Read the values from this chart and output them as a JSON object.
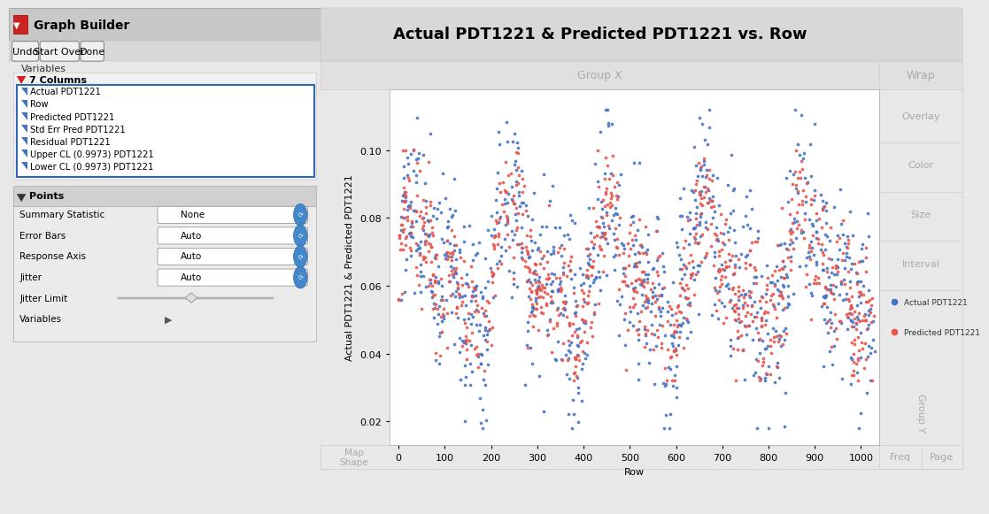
{
  "title": "Actual PDT1221 & Predicted PDT1221 vs. Row",
  "xlabel": "Row",
  "ylabel": "Actual PDT1221 & Predicted PDT1221",
  "group_x_label": "Group X",
  "group_y_label": "Group Y",
  "wrap_label": "Wrap",
  "freq_label": "Freq",
  "page_label": "Page",
  "map_shape_label": "Map\nShape",
  "overlay_label": "Overlay",
  "color_label": "Color",
  "size_label": "Size",
  "interval_label": "Interval",
  "legend_actual": "Actual PDT1221",
  "legend_predicted": "Predicted PDT1221",
  "actual_color": "#4472C4",
  "predicted_color": "#E8534A",
  "xlim": [
    -20,
    1040
  ],
  "ylim": [
    0.013,
    0.118
  ],
  "xticks": [
    0,
    100,
    200,
    300,
    400,
    500,
    600,
    700,
    800,
    900,
    1000
  ],
  "yticks": [
    0.02,
    0.04,
    0.06,
    0.08,
    0.1
  ],
  "bg_color": "#e8e8e8",
  "plot_bg_color": "#ffffff",
  "title_fontsize": 13,
  "axis_fontsize": 8,
  "tick_fontsize": 8,
  "n_actual": 1000,
  "n_predicted": 900,
  "seed": 42
}
